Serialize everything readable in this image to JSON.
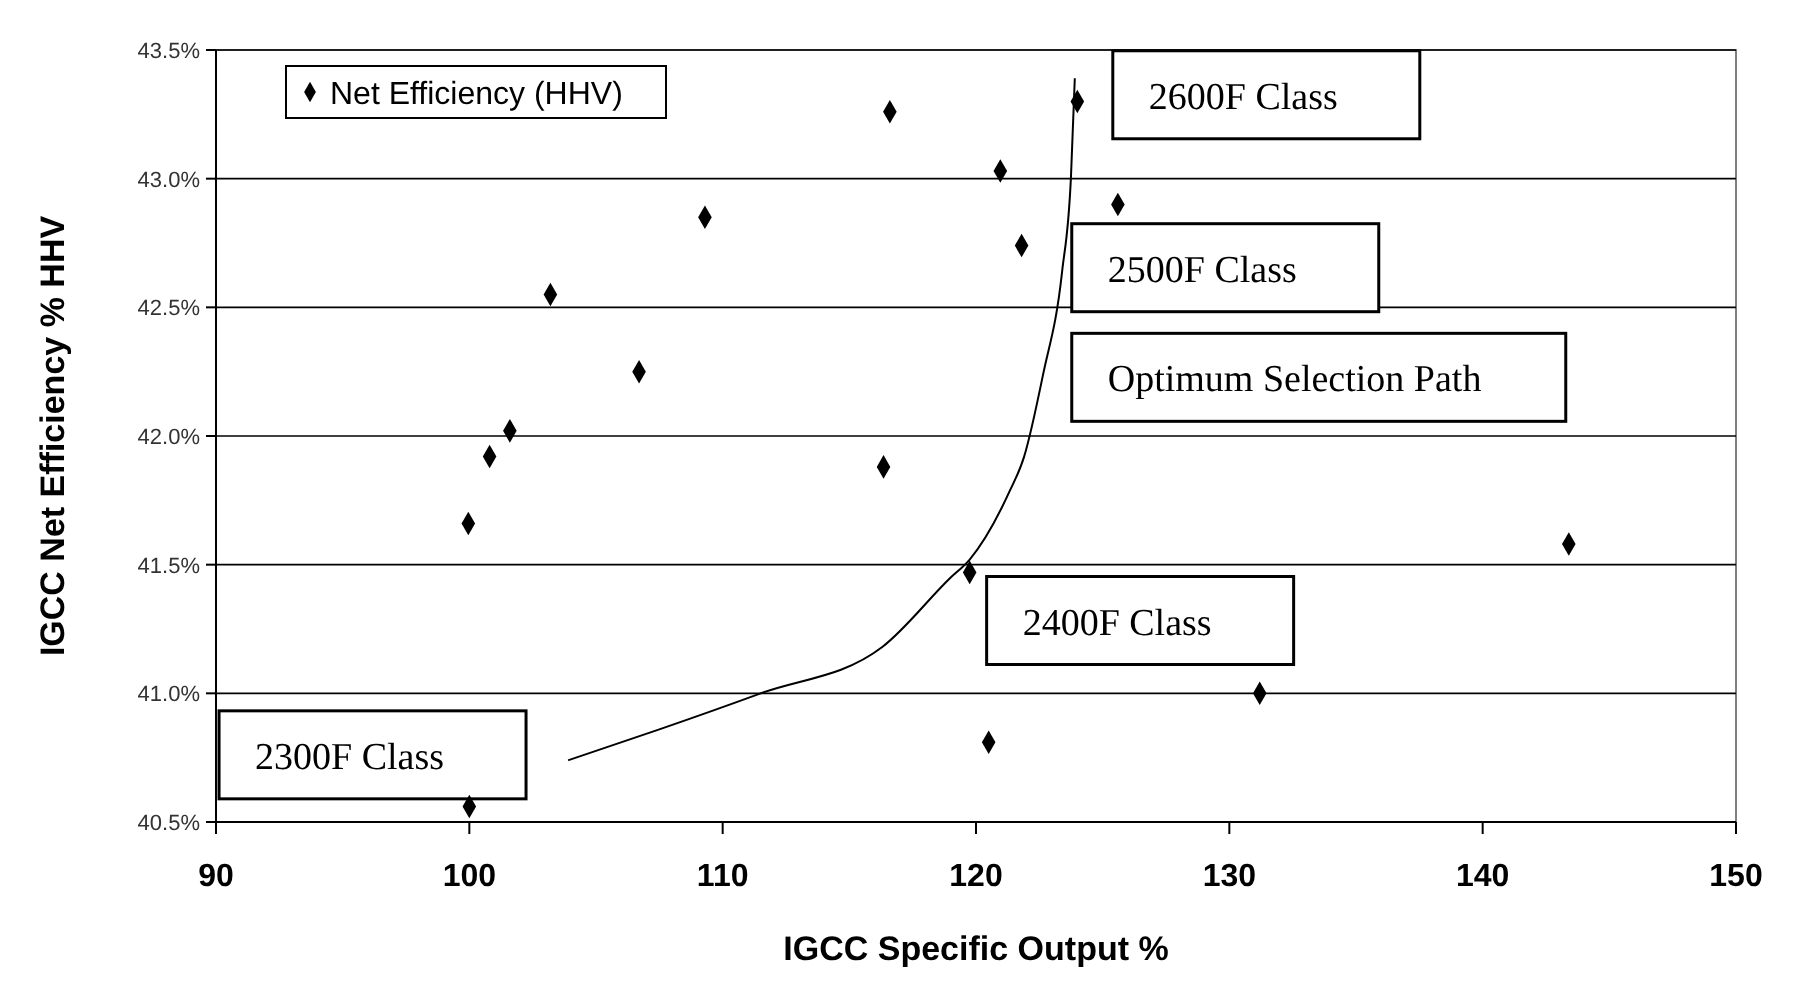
{
  "chart_data": {
    "type": "scatter",
    "xlabel": "IGCC Specific Output %",
    "ylabel": "IGCC Net Efficiency % HHV",
    "xlim": [
      90,
      150
    ],
    "xticks": [
      90,
      100,
      110,
      120,
      130,
      140,
      150
    ],
    "ylim": [
      40.5,
      43.5
    ],
    "yticks": [
      {
        "value": 40.5,
        "label": "40.5%"
      },
      {
        "value": 41,
        "label": "41.0%"
      },
      {
        "value": 41.5,
        "label": "41.5%"
      },
      {
        "value": 42,
        "label": "42.0%"
      },
      {
        "value": 42.5,
        "label": "42.5%"
      },
      {
        "value": 43,
        "label": "43.0%"
      },
      {
        "value": 43.5,
        "label": "43.5%"
      }
    ],
    "grid": "y",
    "legend": "top left",
    "marker": "diamond",
    "series": [
      {
        "name": "Net Efficiency (HHV)",
        "color": "#000000",
        "x": [
          116.6,
          109.3,
          103.2,
          106.7,
          101.6,
          100.8,
          116.35,
          99.96,
          100,
          124.0,
          120.96,
          125.6,
          121.8,
          119.75,
          143.4,
          131.2,
          120.5
        ],
        "values": [
          43.26,
          42.85,
          42.55,
          42.25,
          42.02,
          41.92,
          41.88,
          41.66,
          40.56,
          43.3,
          43.03,
          42.9,
          42.74,
          41.47,
          41.58,
          41.0,
          40.81
        ]
      },
      {
        "type": "line",
        "color": "#000000",
        "marker": "none",
        "line_style": "solid",
        "x": [
          103.9,
          107.5,
          111.5,
          116.3,
          119.0,
          119.75,
          121.3,
          121.9,
          122.65,
          123.4,
          123.75,
          123.9
        ],
        "values": [
          40.74,
          40.86,
          41.0,
          41.18,
          41.45,
          41.52,
          41.78,
          41.92,
          42.24,
          42.64,
          43.01,
          43.39
        ]
      }
    ],
    "annotations": [
      "2600F Class",
      "2500F Class",
      "Optimum Selection Path",
      "2300F Class",
      "2400F Class"
    ]
  }
}
